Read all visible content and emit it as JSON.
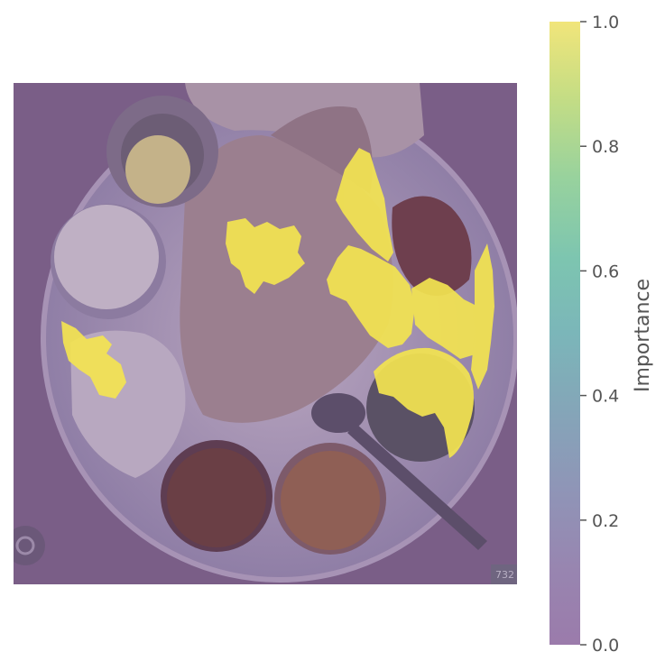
{
  "chart_data": {
    "type": "heatmap",
    "title": "",
    "xlabel": "",
    "ylabel": "",
    "colorbar": {
      "label": "Importance",
      "range": [
        0.0,
        1.0
      ],
      "ticks": [
        0.0,
        0.2,
        0.4,
        0.6,
        0.8,
        1.0
      ],
      "tick_labels": [
        "0.0",
        "0.2",
        "0.4",
        "0.6",
        "0.8",
        "1.0"
      ],
      "colormap": "viridis",
      "alpha": 0.5
    },
    "background_image": {
      "subject": "thali-plate",
      "overlay_value": 0.0,
      "corner_text": "732 ("
    },
    "high_importance_regions": [
      {
        "name": "roti-center",
        "importance": 1.0
      },
      {
        "name": "chapati-folds-top",
        "importance": 1.0
      },
      {
        "name": "chapati-folds-right",
        "importance": 1.0
      },
      {
        "name": "salad-greens",
        "importance": 1.0
      },
      {
        "name": "rice-left-edge",
        "importance": 1.0
      },
      {
        "name": "green-curry-bowl",
        "importance": 1.0
      },
      {
        "name": "plate-right-rim",
        "importance": 1.0
      }
    ],
    "grid": false,
    "legend": "none"
  }
}
